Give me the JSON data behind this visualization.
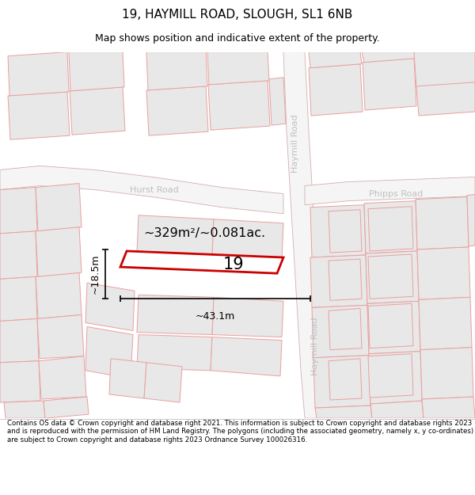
{
  "title": "19, HAYMILL ROAD, SLOUGH, SL1 6NB",
  "subtitle": "Map shows position and indicative extent of the property.",
  "footer": "Contains OS data © Crown copyright and database right 2021. This information is subject to Crown copyright and database rights 2023 and is reproduced with the permission of HM Land Registry. The polygons (including the associated geometry, namely x, y co-ordinates) are subject to Crown copyright and database rights 2023 Ordnance Survey 100026316.",
  "map_bg": "#ffffff",
  "plot_fill": "#e8e8e8",
  "plot_stroke": "#e8a0a0",
  "road_line": "#d0b0b0",
  "road_fill": "#f5f5f5",
  "highlight_fill": "#ffffff",
  "highlight_stroke": "#cc0000",
  "haymill_label": "#bbbbbb",
  "road_label": "#aaaaaa",
  "area_text": "~329m²/~0.081ac.",
  "label_19": "19",
  "dim_width": "~43.1m",
  "dim_height": "~18.5m",
  "title_fontsize": 11,
  "subtitle_fontsize": 9,
  "footer_fontsize": 6.2
}
